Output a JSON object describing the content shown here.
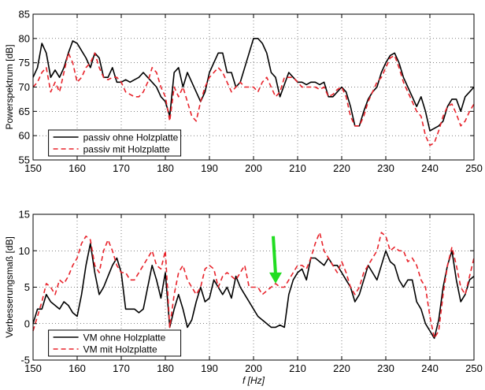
{
  "chart_data": [
    {
      "type": "line",
      "ylabel": "Powerspektrum [dB]",
      "xlabel": "",
      "xlim": [
        150,
        250
      ],
      "ylim": [
        55,
        85
      ],
      "xticks": [
        150,
        160,
        170,
        180,
        190,
        200,
        210,
        220,
        230,
        240,
        250
      ],
      "yticks": [
        55,
        60,
        65,
        70,
        75,
        80,
        85
      ],
      "grid": true,
      "legend_position": "bottom-left",
      "series": [
        {
          "name": "passiv ohne Holzplatte",
          "color": "#000000",
          "dash": "solid",
          "x": [
            150,
            151,
            152,
            153,
            154,
            155,
            156,
            157,
            158,
            159,
            160,
            161,
            162,
            163,
            164,
            165,
            166,
            167,
            168,
            169,
            170,
            171,
            172,
            173,
            174,
            175,
            176,
            177,
            178,
            179,
            180,
            181,
            182,
            183,
            184,
            185,
            186,
            187,
            188,
            189,
            190,
            191,
            192,
            193,
            194,
            195,
            196,
            197,
            198,
            199,
            200,
            201,
            202,
            203,
            204,
            205,
            206,
            207,
            208,
            209,
            210,
            211,
            212,
            213,
            214,
            215,
            216,
            217,
            218,
            219,
            220,
            221,
            222,
            223,
            224,
            225,
            226,
            227,
            228,
            229,
            230,
            231,
            232,
            233,
            234,
            235,
            236,
            237,
            238,
            239,
            240,
            241,
            242,
            243,
            244,
            245,
            246,
            247,
            248,
            249,
            250
          ],
          "values": [
            72,
            74,
            79,
            77,
            72,
            73.5,
            72,
            74,
            77,
            79.5,
            79,
            77.5,
            76,
            74,
            77,
            76,
            72,
            72,
            74,
            71,
            71,
            71.5,
            71,
            71.5,
            72,
            73,
            72,
            71,
            70,
            68,
            67,
            64,
            73,
            74,
            70,
            73,
            71,
            69,
            67,
            69,
            73,
            75,
            77,
            77,
            73,
            73,
            70,
            71,
            74,
            77,
            80,
            80,
            79,
            77,
            73,
            72,
            68,
            70.5,
            73,
            72,
            71,
            71,
            70.5,
            71,
            71,
            70.5,
            71,
            68,
            68,
            69,
            70,
            69,
            66,
            62,
            62,
            65,
            67.5,
            69,
            70,
            73,
            75,
            76.5,
            77,
            75,
            72,
            70,
            68,
            66,
            68,
            65,
            61,
            61.5,
            62,
            63,
            66,
            67.5,
            67.5,
            65,
            68,
            69,
            70
          ]
        },
        {
          "name": "passiv mit Holzplatte",
          "color": "#e8232b",
          "dash": "dashed",
          "x": [
            150,
            151,
            152,
            153,
            154,
            155,
            156,
            157,
            158,
            159,
            160,
            161,
            162,
            163,
            164,
            165,
            166,
            167,
            168,
            169,
            170,
            171,
            172,
            173,
            174,
            175,
            176,
            177,
            178,
            179,
            180,
            181,
            182,
            183,
            184,
            185,
            186,
            187,
            188,
            189,
            190,
            191,
            192,
            193,
            194,
            195,
            196,
            197,
            198,
            199,
            200,
            201,
            202,
            203,
            204,
            205,
            206,
            207,
            208,
            209,
            210,
            211,
            212,
            213,
            214,
            215,
            216,
            217,
            218,
            219,
            220,
            221,
            222,
            223,
            224,
            225,
            226,
            227,
            228,
            229,
            230,
            231,
            232,
            233,
            234,
            235,
            236,
            237,
            238,
            239,
            240,
            241,
            242,
            243,
            244,
            245,
            246,
            247,
            248,
            249,
            250
          ],
          "values": [
            70,
            71,
            73,
            74,
            69,
            71,
            69,
            73,
            77,
            75,
            71,
            72,
            74,
            75,
            77,
            74,
            72,
            71.5,
            72,
            72,
            71,
            69,
            68.5,
            68,
            68,
            69,
            71,
            74,
            73,
            70,
            68,
            63,
            70,
            68,
            70,
            67,
            64,
            63,
            67,
            70,
            72,
            73,
            74,
            73,
            71,
            69,
            70,
            71,
            70,
            70,
            70,
            69,
            71,
            72,
            70,
            68,
            69,
            72,
            72,
            72,
            71,
            70,
            70,
            70,
            70,
            69.5,
            70,
            68,
            68.5,
            69.5,
            70,
            68,
            64,
            62,
            62,
            64,
            67,
            69,
            71,
            72,
            74,
            76,
            76.5,
            74,
            71,
            69,
            67,
            65,
            64,
            60,
            58,
            58.5,
            61,
            64,
            66,
            66.5,
            64.5,
            62,
            63,
            65,
            66.5
          ]
        }
      ]
    },
    {
      "type": "line",
      "ylabel": "Verbesserungsmaß [dB]",
      "xlabel": "f [Hz]",
      "xlim": [
        150,
        250
      ],
      "ylim": [
        -5,
        15
      ],
      "xticks": [
        150,
        160,
        170,
        180,
        190,
        200,
        210,
        220,
        230,
        240,
        250
      ],
      "yticks": [
        -5,
        0,
        5,
        10,
        15
      ],
      "grid": true,
      "legend_position": "bottom-left",
      "annotation": {
        "type": "arrow",
        "color": "#22dd22",
        "x": 205,
        "y_from": 12,
        "y_to": 5.5
      },
      "series": [
        {
          "name": "VM ohne Holzplatte",
          "color": "#000000",
          "dash": "solid",
          "x": [
            150,
            151,
            152,
            153,
            154,
            155,
            156,
            157,
            158,
            159,
            160,
            161,
            162,
            163,
            164,
            165,
            166,
            167,
            168,
            169,
            170,
            171,
            172,
            173,
            174,
            175,
            176,
            177,
            178,
            179,
            180,
            181,
            182,
            183,
            184,
            185,
            186,
            187,
            188,
            189,
            190,
            191,
            192,
            193,
            194,
            195,
            196,
            197,
            198,
            199,
            200,
            201,
            202,
            203,
            204,
            205,
            206,
            207,
            208,
            209,
            210,
            211,
            212,
            213,
            214,
            215,
            216,
            217,
            218,
            219,
            220,
            221,
            222,
            223,
            224,
            225,
            226,
            227,
            228,
            229,
            230,
            231,
            232,
            233,
            234,
            235,
            236,
            237,
            238,
            239,
            240,
            241,
            242,
            243,
            244,
            245,
            246,
            247,
            248,
            249,
            250
          ],
          "values": [
            0,
            2,
            2,
            4,
            3,
            2.5,
            2,
            3,
            2.5,
            1.5,
            1,
            4,
            8,
            11,
            7,
            4,
            5,
            6.5,
            8,
            9,
            7,
            2,
            2,
            2,
            1.5,
            2,
            5,
            8,
            6,
            3.5,
            7,
            -0.5,
            2,
            4,
            2,
            -0.5,
            0.5,
            3,
            5,
            3,
            3.5,
            6,
            5,
            4,
            5,
            3.5,
            6.5,
            5,
            4,
            3,
            2,
            1,
            0.5,
            0,
            -0.5,
            -0.5,
            -0.2,
            -0.5,
            4,
            6,
            7,
            7.5,
            6,
            9,
            9,
            8.5,
            8,
            9,
            8,
            8,
            7,
            6,
            5,
            3,
            4,
            6,
            8,
            7,
            6,
            8,
            10,
            8.5,
            8,
            6,
            5,
            6,
            6,
            3,
            2,
            0,
            -1,
            -2,
            0.5,
            5,
            8,
            10,
            6,
            3,
            4,
            6,
            6.5
          ]
        },
        {
          "name": "VM mit Holzplatte",
          "color": "#e8232b",
          "dash": "dashed",
          "x": [
            150,
            151,
            152,
            153,
            154,
            155,
            156,
            157,
            158,
            159,
            160,
            161,
            162,
            163,
            164,
            165,
            166,
            167,
            168,
            169,
            170,
            171,
            172,
            173,
            174,
            175,
            176,
            177,
            178,
            179,
            180,
            181,
            182,
            183,
            184,
            185,
            186,
            187,
            188,
            189,
            190,
            191,
            192,
            193,
            194,
            195,
            196,
            197,
            198,
            199,
            200,
            201,
            202,
            203,
            204,
            205,
            206,
            207,
            208,
            209,
            210,
            211,
            212,
            213,
            214,
            215,
            216,
            217,
            218,
            219,
            220,
            221,
            222,
            223,
            224,
            225,
            226,
            227,
            228,
            229,
            230,
            231,
            232,
            233,
            234,
            235,
            236,
            237,
            238,
            239,
            240,
            241,
            242,
            243,
            244,
            245,
            246,
            247,
            248,
            249,
            250
          ],
          "values": [
            -1,
            1,
            3,
            5.5,
            5,
            4,
            6,
            5.5,
            6.5,
            8,
            9,
            11,
            12,
            11.5,
            8,
            7,
            10,
            11.5,
            10,
            8,
            7,
            7,
            6,
            6,
            7,
            8,
            9,
            10,
            8,
            7.5,
            10,
            -0.5,
            4,
            7,
            8,
            6,
            5,
            4,
            5,
            7.5,
            8,
            7.5,
            5,
            6.5,
            7,
            6.5,
            6,
            7,
            8,
            5,
            5,
            5,
            4,
            4.5,
            5,
            5.5,
            5,
            5,
            6,
            7,
            8,
            8,
            7.5,
            9,
            11,
            12.5,
            10,
            9,
            8,
            7,
            8.5,
            7,
            5,
            4,
            5,
            7,
            8,
            9,
            10,
            12.5,
            12,
            10,
            10.5,
            10,
            10,
            8.5,
            9,
            8,
            6,
            5,
            1,
            -2,
            -1,
            4,
            8,
            10.5,
            8,
            5,
            4,
            6.5,
            9
          ]
        }
      ]
    }
  ]
}
